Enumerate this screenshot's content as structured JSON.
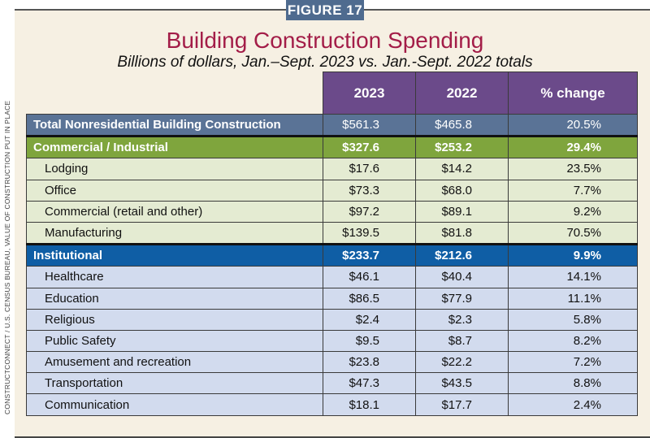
{
  "figure_label": "FIGURE 17",
  "source": "CONSTRUCTCONNECT / U.S. CENSUS BUREAU, VALUE OF CONSTRUCTION PUT IN PLACE",
  "colors": {
    "title": "#a31d48",
    "header": "#6b4a8a",
    "total": "#5a7396",
    "commercial": "#7fa53d",
    "commercial_rows": "#e4ebd2",
    "institutional": "#0f5ea5",
    "institutional_rows": "#d2dbee",
    "badge": "#4f6b8f"
  },
  "chart_data": {
    "type": "table",
    "title": "Building Construction Spending",
    "subtitle": "Billions of dollars, Jan.–Sept. 2023 vs. Jan.-Sept. 2022 totals",
    "columns": [
      "2023",
      "2022",
      "% change"
    ],
    "rows": [
      {
        "label": "Total Nonresidential Building Construction",
        "kind": "total",
        "v2023": "$561.3",
        "v2022": "$465.8",
        "pct": "20.5%"
      },
      {
        "label": "Commercial / Industrial",
        "kind": "comm",
        "v2023": "$327.6",
        "v2022": "$253.2",
        "pct": "29.4%"
      },
      {
        "label": "Lodging",
        "kind": "commsub",
        "v2023": "$17.6",
        "v2022": "$14.2",
        "pct": "23.5%"
      },
      {
        "label": "Office",
        "kind": "commsub",
        "v2023": "$73.3",
        "v2022": "$68.0",
        "pct": "7.7%"
      },
      {
        "label": "Commercial (retail and other)",
        "kind": "commsub",
        "v2023": "$97.2",
        "v2022": "$89.1",
        "pct": "9.2%"
      },
      {
        "label": "Manufacturing",
        "kind": "commsub",
        "v2023": "$139.5",
        "v2022": "$81.8",
        "pct": "70.5%"
      },
      {
        "label": "Institutional",
        "kind": "inst",
        "v2023": "$233.7",
        "v2022": "$212.6",
        "pct": "9.9%"
      },
      {
        "label": "Healthcare",
        "kind": "instsub",
        "v2023": "$46.1",
        "v2022": "$40.4",
        "pct": "14.1%"
      },
      {
        "label": "Education",
        "kind": "instsub",
        "v2023": "$86.5",
        "v2022": "$77.9",
        "pct": "11.1%"
      },
      {
        "label": "Religious",
        "kind": "instsub",
        "v2023": "$2.4",
        "v2022": "$2.3",
        "pct": "5.8%"
      },
      {
        "label": "Public Safety",
        "kind": "instsub",
        "v2023": "$9.5",
        "v2022": "$8.7",
        "pct": "8.2%"
      },
      {
        "label": "Amusement and recreation",
        "kind": "instsub",
        "v2023": "$23.8",
        "v2022": "$22.2",
        "pct": "7.2%"
      },
      {
        "label": "Transportation",
        "kind": "instsub",
        "v2023": "$47.3",
        "v2022": "$43.5",
        "pct": "8.8%"
      },
      {
        "label": "Communication",
        "kind": "instsub",
        "v2023": "$18.1",
        "v2022": "$17.7",
        "pct": "2.4%"
      }
    ]
  }
}
